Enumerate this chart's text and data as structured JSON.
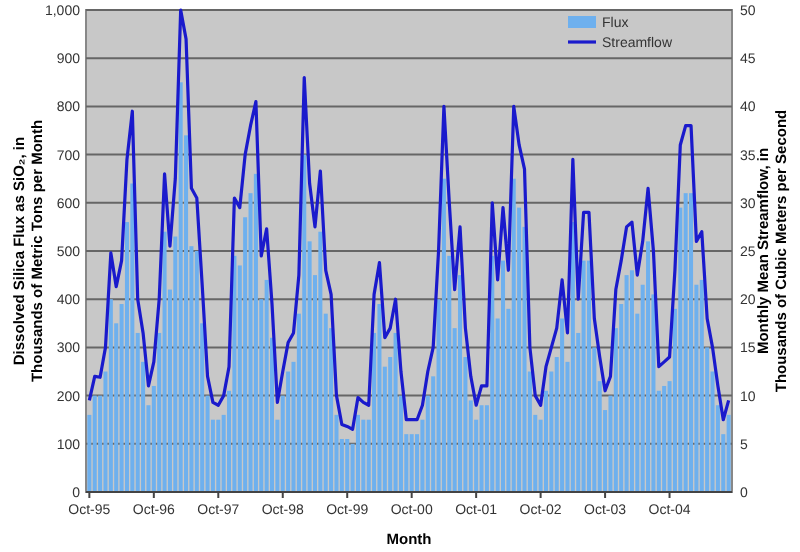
{
  "chart_data": {
    "type": "bar",
    "xlabel": "Month",
    "ylabel": "Dissolved Silica Flux as SiO₂, in Thousands of Metric Tons per Month",
    "y2label": "Monthly Mean Streamflow, in Thousands of Cubic Meters per Second",
    "categories": [
      "Oct-95",
      null,
      null,
      null,
      null,
      null,
      null,
      null,
      null,
      null,
      null,
      null,
      "Oct-96",
      null,
      null,
      null,
      null,
      null,
      null,
      null,
      null,
      null,
      null,
      null,
      "Oct-97",
      null,
      null,
      null,
      null,
      null,
      null,
      null,
      null,
      null,
      null,
      null,
      "Oct-98",
      null,
      null,
      null,
      null,
      null,
      null,
      null,
      null,
      null,
      null,
      null,
      "Oct-99",
      null,
      null,
      null,
      null,
      null,
      null,
      null,
      null,
      null,
      null,
      null,
      "Oct-00",
      null,
      null,
      null,
      null,
      null,
      null,
      null,
      null,
      null,
      null,
      null,
      "Oct-01",
      null,
      null,
      null,
      null,
      null,
      null,
      null,
      null,
      null,
      null,
      null,
      "Oct-02",
      null,
      null,
      null,
      null,
      null,
      null,
      null,
      null,
      null,
      null,
      null,
      "Oct-03",
      null,
      null,
      null,
      null,
      null,
      null,
      null,
      null,
      null,
      null,
      null,
      "Oct-04",
      null,
      null,
      null,
      null,
      null,
      null,
      null,
      null,
      null,
      null,
      null
    ],
    "series": [
      {
        "name": "Flux",
        "color": "#6eb0ee",
        "values": [
          160,
          200,
          200,
          250,
          400,
          350,
          390,
          560,
          640,
          330,
          270,
          180,
          220,
          330,
          540,
          420,
          530,
          850,
          740,
          510,
          500,
          350,
          200,
          150,
          150,
          160,
          210,
          490,
          470,
          570,
          620,
          660,
          400,
          440,
          320,
          150,
          200,
          250,
          270,
          370,
          700,
          520,
          450,
          540,
          370,
          340,
          160,
          110,
          110,
          100,
          160,
          150,
          150,
          330,
          390,
          260,
          280,
          330,
          200,
          120,
          120,
          120,
          150,
          200,
          240,
          400,
          650,
          490,
          340,
          450,
          280,
          190,
          150,
          180,
          180,
          490,
          360,
          480,
          380,
          650,
          590,
          550,
          250,
          160,
          150,
          210,
          250,
          280,
          360,
          270,
          560,
          330,
          480,
          480,
          300,
          230,
          170,
          200,
          340,
          390,
          450,
          460,
          370,
          430,
          520,
          410,
          210,
          220,
          230,
          380,
          590,
          620,
          620,
          430,
          440,
          300,
          250,
          180,
          120,
          160
        ]
      },
      {
        "name": "Streamflow",
        "type": "line",
        "axis": "y2",
        "color": "#1a1acc",
        "values": [
          9.5,
          12,
          11.9,
          15,
          24.8,
          21.3,
          24,
          34.5,
          39.5,
          20,
          16.5,
          11,
          13.5,
          20,
          33,
          25.5,
          32.5,
          50,
          47,
          31.5,
          30.5,
          21.5,
          12,
          9.3,
          9,
          10,
          13,
          30.5,
          29.5,
          35,
          38,
          40.5,
          24.5,
          27.3,
          19.5,
          9.3,
          12.5,
          15.5,
          16.5,
          22.5,
          43,
          32,
          27.5,
          33.3,
          23,
          20.5,
          10,
          7,
          6.8,
          6.5,
          9.8,
          9.3,
          9,
          20.5,
          23.8,
          16,
          17,
          20,
          12.5,
          7.5,
          7.5,
          7.5,
          9,
          12.5,
          15,
          25,
          40,
          30,
          21,
          27.5,
          17,
          12,
          9,
          11,
          11,
          30,
          22,
          29.5,
          23,
          40,
          36,
          33.5,
          15,
          10,
          9,
          13,
          15,
          17,
          22,
          16.5,
          34.5,
          20,
          29,
          29,
          18,
          14,
          10.5,
          12,
          21,
          24,
          27.5,
          28,
          22.5,
          26,
          31.5,
          25,
          13,
          13.5,
          14,
          23,
          36,
          38,
          38,
          26,
          27,
          18,
          15,
          11,
          7.5,
          9.5
        ]
      }
    ],
    "ylim": [
      0,
      1000
    ],
    "yticks": [
      0,
      100,
      200,
      300,
      400,
      500,
      600,
      700,
      800,
      900,
      {
        "value": 1000,
        "label": "1,000"
      }
    ],
    "y2lim": [
      0,
      50
    ],
    "y2ticks": [
      0,
      5,
      10,
      15,
      20,
      25,
      30,
      35,
      40,
      45,
      50
    ],
    "grid": "y",
    "legend": "top right",
    "line_style": "solid",
    "marker": "none"
  }
}
